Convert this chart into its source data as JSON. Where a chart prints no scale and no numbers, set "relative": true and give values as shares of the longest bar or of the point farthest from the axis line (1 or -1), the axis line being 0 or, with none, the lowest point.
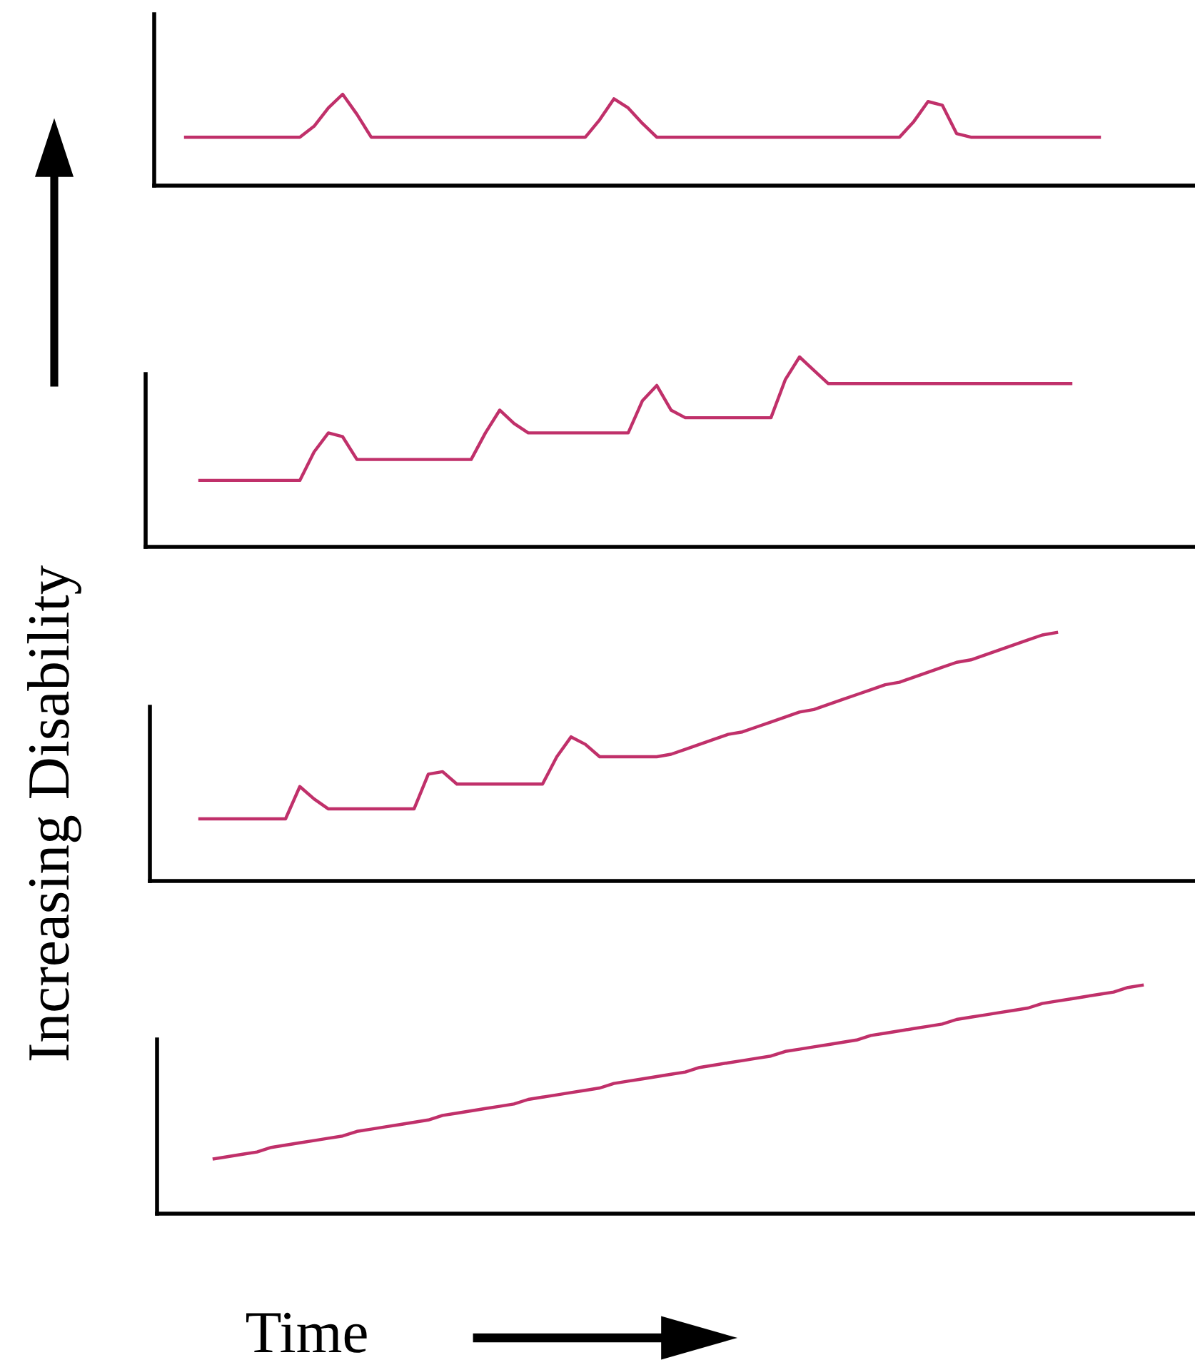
{
  "chart_data": [
    {
      "type": "line",
      "relative": true,
      "categories": [
        null,
        null,
        null,
        null,
        null,
        null,
        null,
        null,
        null,
        null,
        null,
        null,
        null,
        null,
        null,
        null,
        null,
        null,
        null,
        null,
        null,
        null,
        null,
        null,
        null,
        null,
        null,
        null,
        null,
        null,
        null,
        null,
        null,
        null,
        null,
        null,
        null,
        null,
        null,
        null,
        null,
        null,
        null,
        null,
        null,
        null,
        null,
        null,
        null,
        null,
        null,
        null,
        null,
        null,
        null,
        null,
        null,
        null,
        null,
        null,
        null,
        null,
        null,
        null,
        null,
        null,
        null,
        null,
        null,
        null,
        null,
        null,
        null
      ],
      "series": [
        {
          "color": "#c0306a",
          "values": [
            null,
            null,
            0.53,
            0.53,
            0.53,
            0.53,
            0.53,
            0.53,
            0.53,
            0.53,
            0.53,
            0.65,
            0.85,
            1,
            0.78,
            0.53,
            0.53,
            0.53,
            0.53,
            0.53,
            0.53,
            0.53,
            0.53,
            0.53,
            0.53,
            0.53,
            0.53,
            0.53,
            0.53,
            0.53,
            0.53,
            0.72,
            0.95,
            0.85,
            0.68,
            0.53,
            0.53,
            0.53,
            0.53,
            0.53,
            0.53,
            0.53,
            0.53,
            0.53,
            0.53,
            0.53,
            0.53,
            0.53,
            0.53,
            0.53,
            0.53,
            0.53,
            0.53,
            0.7,
            0.92,
            0.88,
            0.57,
            0.53,
            0.53,
            0.53,
            0.53,
            0.53,
            0.53,
            0.53,
            0.53,
            0.53,
            0.53,
            null,
            null,
            null,
            null,
            null,
            null
          ]
        }
      ]
    },
    {
      "type": "line",
      "relative": true,
      "categories": [
        null,
        null,
        null,
        null,
        null,
        null,
        null,
        null,
        null,
        null,
        null,
        null,
        null,
        null,
        null,
        null,
        null,
        null,
        null,
        null,
        null,
        null,
        null,
        null,
        null,
        null,
        null,
        null,
        null,
        null,
        null,
        null,
        null,
        null,
        null,
        null,
        null,
        null,
        null,
        null,
        null,
        null,
        null,
        null,
        null,
        null,
        null,
        null,
        null,
        null,
        null,
        null,
        null,
        null,
        null,
        null,
        null,
        null,
        null,
        null,
        null,
        null,
        null,
        null,
        null,
        null,
        null,
        null,
        null,
        null,
        null,
        null,
        null
      ],
      "series": [
        {
          "color": "#c0306a",
          "values": [
            null,
            null,
            null,
            0.35,
            0.35,
            0.35,
            0.35,
            0.35,
            0.35,
            0.35,
            0.35,
            0.5,
            0.6,
            0.58,
            0.46,
            0.46,
            0.46,
            0.46,
            0.46,
            0.46,
            0.46,
            0.46,
            0.46,
            0.6,
            0.72,
            0.65,
            0.6,
            0.6,
            0.6,
            0.6,
            0.6,
            0.6,
            0.6,
            0.6,
            0.77,
            0.85,
            0.72,
            0.68,
            0.68,
            0.68,
            0.68,
            0.68,
            0.68,
            0.68,
            0.88,
            1,
            0.93,
            0.86,
            0.86,
            0.86,
            0.86,
            0.86,
            0.86,
            0.86,
            0.86,
            0.86,
            0.86,
            0.86,
            0.86,
            0.86,
            0.86,
            0.86,
            0.86,
            0.86,
            0.86,
            null,
            null,
            null,
            null,
            null,
            null,
            null,
            null
          ]
        }
      ]
    },
    {
      "type": "line",
      "relative": true,
      "categories": [
        null,
        null,
        null,
        null,
        null,
        null,
        null,
        null,
        null,
        null,
        null,
        null,
        null,
        null,
        null,
        null,
        null,
        null,
        null,
        null,
        null,
        null,
        null,
        null,
        null,
        null,
        null,
        null,
        null,
        null,
        null,
        null,
        null,
        null,
        null,
        null,
        null,
        null,
        null,
        null,
        null,
        null,
        null,
        null,
        null,
        null,
        null,
        null,
        null,
        null,
        null,
        null,
        null,
        null,
        null,
        null,
        null,
        null,
        null,
        null,
        null,
        null,
        null,
        null,
        null,
        null,
        null,
        null,
        null,
        null,
        null,
        null,
        null
      ],
      "series": [
        {
          "color": "#c0306a",
          "values": [
            null,
            null,
            null,
            0.25,
            0.25,
            0.25,
            0.25,
            0.25,
            0.25,
            0.25,
            0.38,
            0.33,
            0.29,
            0.29,
            0.29,
            0.29,
            0.29,
            0.29,
            0.29,
            0.43,
            0.44,
            0.39,
            0.39,
            0.39,
            0.39,
            0.39,
            0.39,
            0.39,
            0.5,
            0.58,
            0.55,
            0.5,
            0.5,
            0.5,
            0.5,
            0.5,
            0.51,
            0.53,
            0.55,
            0.57,
            0.59,
            0.6,
            0.62,
            0.64,
            0.66,
            0.68,
            0.69,
            0.71,
            0.73,
            0.75,
            0.77,
            0.79,
            0.8,
            0.82,
            0.84,
            0.86,
            0.88,
            0.89,
            0.91,
            0.93,
            0.95,
            0.97,
            0.99,
            1,
            null,
            null,
            null,
            null,
            null,
            null,
            null,
            null,
            null
          ]
        }
      ]
    },
    {
      "type": "line",
      "relative": true,
      "categories": [
        null,
        null,
        null,
        null,
        null,
        null,
        null,
        null,
        null,
        null,
        null,
        null,
        null,
        null,
        null,
        null,
        null,
        null,
        null,
        null,
        null,
        null,
        null,
        null,
        null,
        null,
        null,
        null,
        null,
        null,
        null,
        null,
        null,
        null,
        null,
        null,
        null,
        null,
        null,
        null,
        null,
        null,
        null,
        null,
        null,
        null,
        null,
        null,
        null,
        null,
        null,
        null,
        null,
        null,
        null,
        null,
        null,
        null,
        null,
        null,
        null,
        null,
        null,
        null,
        null,
        null,
        null,
        null,
        null,
        null,
        null,
        null,
        null
      ],
      "series": [
        {
          "color": "#c0306a",
          "values": [
            null,
            null,
            null,
            null,
            0.24,
            0.25,
            0.26,
            0.27,
            0.29,
            0.3,
            0.31,
            0.32,
            0.33,
            0.34,
            0.36,
            0.37,
            0.38,
            0.39,
            0.4,
            0.41,
            0.43,
            0.44,
            0.45,
            0.46,
            0.47,
            0.48,
            0.5,
            0.51,
            0.52,
            0.53,
            0.54,
            0.55,
            0.57,
            0.58,
            0.59,
            0.6,
            0.61,
            0.62,
            0.64,
            0.65,
            0.66,
            0.67,
            0.68,
            0.69,
            0.71,
            0.72,
            0.73,
            0.74,
            0.75,
            0.76,
            0.78,
            0.79,
            0.8,
            0.81,
            0.82,
            0.83,
            0.85,
            0.86,
            0.87,
            0.88,
            0.89,
            0.9,
            0.92,
            0.93,
            0.94,
            0.95,
            0.96,
            0.97,
            0.99,
            1,
            null,
            null,
            null
          ]
        }
      ]
    },
    {
      "type": "other",
      "ylabel": "Increasing Disability",
      "xlabel": "Time"
    }
  ]
}
